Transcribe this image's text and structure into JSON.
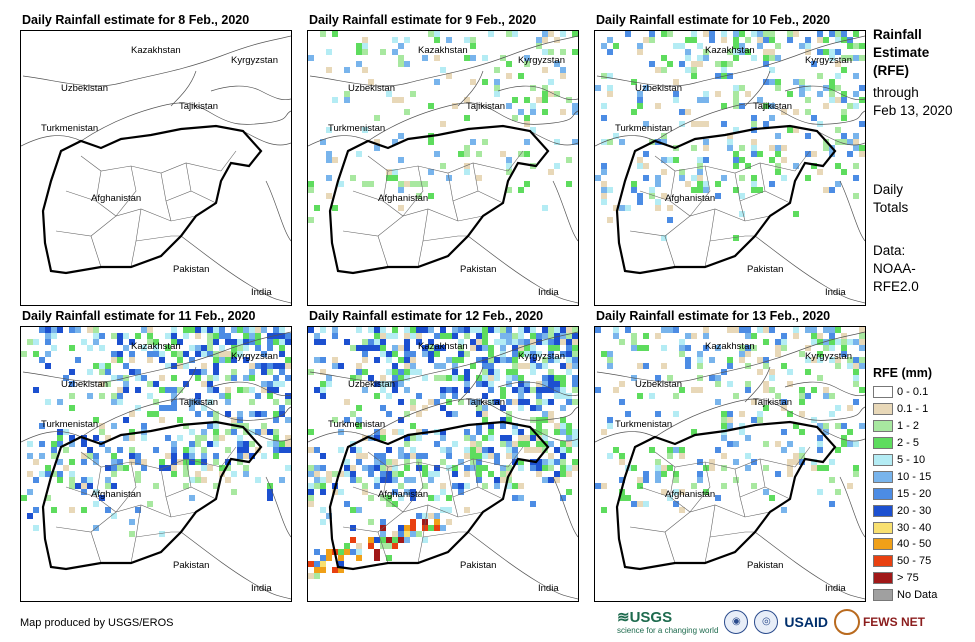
{
  "panels": [
    {
      "title": "Daily Rainfall estimate for 8 Feb., 2020",
      "intensity": 0
    },
    {
      "title": "Daily Rainfall estimate for 9 Feb., 2020",
      "intensity": 1
    },
    {
      "title": "Daily Rainfall estimate for 10 Feb., 2020",
      "intensity": 2
    },
    {
      "title": "Daily Rainfall estimate for 11 Feb., 2020",
      "intensity": 3
    },
    {
      "title": "Daily Rainfall estimate for 12 Feb., 2020",
      "intensity": 4
    },
    {
      "title": "Daily Rainfall estimate for 13 Feb., 2020",
      "intensity": 2
    }
  ],
  "map_labels": {
    "kazakhstan": "Kazakhstan",
    "kyrgyzstan": "Kyrgyzstan",
    "uzbekistan": "Uzbekistan",
    "tajikistan": "Tajikistan",
    "turkmenistan": "Turkmenistan",
    "afghanistan": "Afghanistan",
    "pakistan": "Pakistan",
    "india": "India"
  },
  "side": {
    "heading_lines": [
      "Rainfall",
      "Estimate",
      "(RFE)"
    ],
    "through": "through",
    "date": "Feb 13, 2020",
    "daily": "Daily",
    "totals": "Totals",
    "data": "Data:",
    "source_1": "NOAA-",
    "source_2": "RFE2.0"
  },
  "legend": {
    "title": "RFE (mm)",
    "items": [
      {
        "label": "0 - 0.1",
        "color": "#ffffff"
      },
      {
        "label": "0.1 - 1",
        "color": "#e8d8b8"
      },
      {
        "label": "1 - 2",
        "color": "#a8e8a0"
      },
      {
        "label": "2 - 5",
        "color": "#5edc5e"
      },
      {
        "label": "5 - 10",
        "color": "#b4ecf4"
      },
      {
        "label": "10 - 15",
        "color": "#78b4ec"
      },
      {
        "label": "15 - 20",
        "color": "#4c8ce4"
      },
      {
        "label": "20 - 30",
        "color": "#1c50d0"
      },
      {
        "label": "30 - 40",
        "color": "#f8e070"
      },
      {
        "label": "40 - 50",
        "color": "#f0a018"
      },
      {
        "label": "50 - 75",
        "color": "#e84010"
      },
      {
        "label": "> 75",
        "color": "#a01818"
      },
      {
        "label": "No Data",
        "color": "#a0a0a0"
      }
    ]
  },
  "footer": "Map produced by USGS/EROS",
  "logos": {
    "usgs": "USGS",
    "usgs_tag": "science for a changing world",
    "usaid": "USAID",
    "fews": "FEWS NET"
  }
}
